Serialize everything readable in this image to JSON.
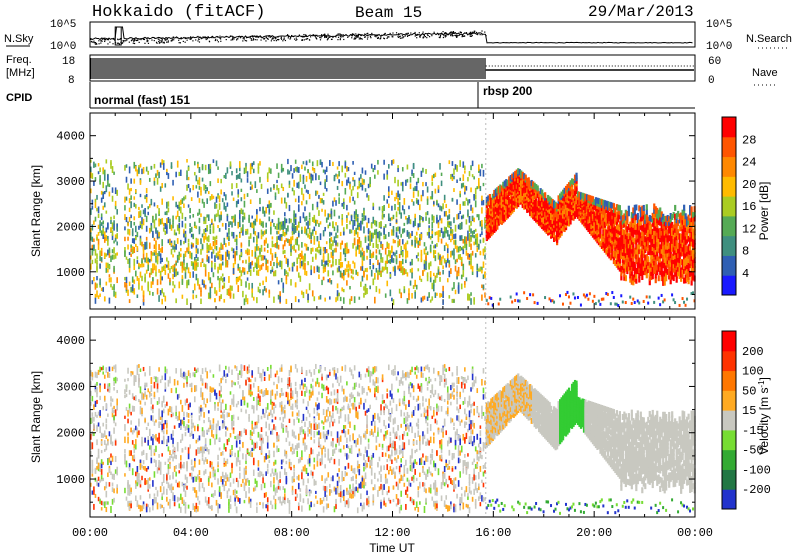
{
  "header": {
    "station": "Hokkaido (fitACF)",
    "beam": "Beam 15",
    "date": "29/Mar/2013"
  },
  "summary_panels": {
    "nsky_label": "N.Sky",
    "nsearch_label": "N.Search",
    "nsky_ticks": [
      "10^5",
      "10^0"
    ],
    "nsky_right_ticks": [
      "10^5",
      "10^0"
    ],
    "freq_label_line1": "Freq.",
    "freq_label_line2": "[MHz]",
    "freq_ticks": [
      "18",
      "8"
    ],
    "nave_label": "Nave",
    "nave_ticks": [
      "60",
      "0"
    ],
    "cpid_label": "CPID",
    "cpid_segments": [
      {
        "label": "normal (fast) 151",
        "start_hour": 0.0,
        "end_hour": 15.7
      },
      {
        "label": "rbsp 200",
        "start_hour": 15.7,
        "end_hour": 24.0
      }
    ]
  },
  "chart_data": [
    {
      "type": "heatmap",
      "title": "",
      "xlabel": "Time UT",
      "ylabel": "Slant Range [km]",
      "xlim_hours": [
        0,
        24
      ],
      "x_tick_labels": [
        "00:00",
        "04:00",
        "08:00",
        "12:00",
        "16:00",
        "20:00",
        "00:00"
      ],
      "ylim": [
        180,
        4500
      ],
      "y_ticks": [
        1000,
        2000,
        3000,
        4000
      ],
      "colorbar": {
        "label": "Power [dB]",
        "ticks": [
          4,
          8,
          12,
          16,
          20,
          24,
          28
        ],
        "range": [
          0,
          30
        ],
        "colors": [
          "#1a1aff",
          "#2f5fb3",
          "#3f8f7f",
          "#55aa55",
          "#aacc22",
          "#ffbb00",
          "#ff8800",
          "#ff5500",
          "#ff0000"
        ]
      }
    },
    {
      "type": "heatmap",
      "title": "",
      "xlabel": "Time UT",
      "ylabel": "Slant Range [km]",
      "xlim_hours": [
        0,
        24
      ],
      "x_tick_labels": [
        "00:00",
        "04:00",
        "08:00",
        "12:00",
        "16:00",
        "20:00",
        "00:00"
      ],
      "ylim": [
        180,
        4500
      ],
      "y_ticks": [
        1000,
        2000,
        3000,
        4000
      ],
      "colorbar": {
        "label": "Velocity [m s",
        "label_superscript": "-1",
        "label_close": "]",
        "ticks": [
          200,
          100,
          50,
          15,
          -15,
          -50,
          -100,
          -200
        ],
        "colors": [
          "#2233cc",
          "#227744",
          "#33aa33",
          "#77dd33",
          "#c8c8c0",
          "#ffaa22",
          "#ff7700",
          "#ff3300",
          "#ff0000"
        ]
      }
    }
  ]
}
